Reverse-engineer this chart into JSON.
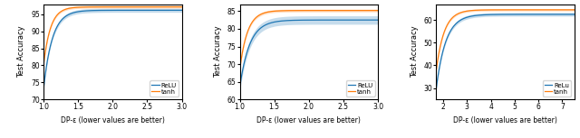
{
  "subplot1": {
    "xlabel": "DP-ε (lower values are better)",
    "ylabel": "Test Accuracy",
    "xlim": [
      1.0,
      3.0
    ],
    "ylim": [
      70,
      98
    ],
    "xticks": [
      1.0,
      1.5,
      2.0,
      2.5,
      3.0
    ],
    "yticks": [
      70,
      75,
      80,
      85,
      90,
      95
    ],
    "relu_color": "#1f77b4",
    "tanh_color": "#ff7f0e",
    "legend": [
      "ReLU",
      "tanh"
    ],
    "relu_x0": 1.0,
    "relu_y0": 73.0,
    "relu_ymax": 96.2,
    "relu_k": 8.0,
    "tanh_x0": 1.0,
    "tanh_y0": 80.0,
    "tanh_ymax": 97.2,
    "tanh_k": 10.0,
    "relu_band": 0.6,
    "tanh_band": 0.35
  },
  "subplot2": {
    "xlabel": "DP-ε (lower values are better)",
    "ylabel": "Test Accuracy",
    "xlim": [
      1.0,
      3.0
    ],
    "ylim": [
      60,
      87
    ],
    "xticks": [
      1.0,
      1.5,
      2.0,
      2.5,
      3.0
    ],
    "yticks": [
      60,
      65,
      70,
      75,
      80,
      85
    ],
    "relu_color": "#1f77b4",
    "tanh_color": "#ff7f0e",
    "legend": [
      "ReLU",
      "tanh"
    ],
    "relu_x0": 1.0,
    "relu_y0": 63.5,
    "relu_ymax": 82.5,
    "relu_k": 7.0,
    "tanh_x0": 1.0,
    "tanh_y0": 68.5,
    "tanh_ymax": 85.2,
    "tanh_k": 9.0,
    "relu_band": 1.2,
    "tanh_band": 0.4
  },
  "subplot3": {
    "xlabel": "DP-ε (lower values are better)",
    "ylabel": "Test Accuracy",
    "xlim": [
      1.7,
      7.5
    ],
    "ylim": [
      25,
      67
    ],
    "xticks": [
      2,
      3,
      4,
      5,
      6,
      7
    ],
    "yticks": [
      30,
      40,
      50,
      60
    ],
    "relu_color": "#1f77b4",
    "tanh_color": "#ff7f0e",
    "legend": [
      "ReLu",
      "tanh"
    ],
    "relu_x0": 1.7,
    "relu_y0": 29.0,
    "relu_ymax": 62.5,
    "relu_k": 2.5,
    "tanh_x0": 1.7,
    "tanh_y0": 37.0,
    "tanh_ymax": 64.5,
    "tanh_k": 3.0,
    "relu_band": 0.8,
    "tanh_band": 0.5
  }
}
